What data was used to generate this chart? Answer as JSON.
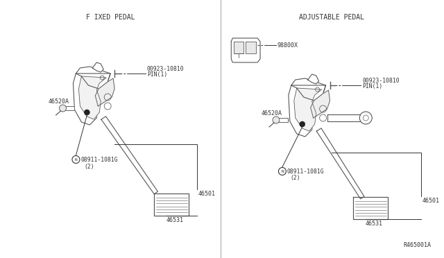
{
  "background_color": "#ffffff",
  "title_left": "F IXED PEDAL",
  "title_right": "ADJUSTABLE PEDAL",
  "ref_number": "R465001A",
  "line_color": "#555555",
  "text_color": "#333333",
  "font_size_title": 7.0,
  "font_size_label": 6.0,
  "font_size_ref": 6.0
}
